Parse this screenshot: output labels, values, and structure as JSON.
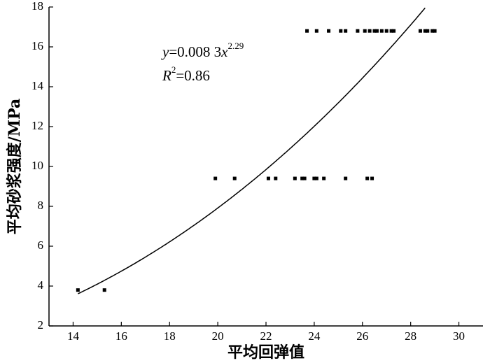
{
  "chart_data": {
    "type": "scatter",
    "xlabel": "平均回弹值",
    "ylabel": "平均砂浆强度/MPa",
    "xlim": [
      13,
      31
    ],
    "xticks": [
      14,
      16,
      18,
      20,
      22,
      24,
      26,
      28,
      30
    ],
    "ylim": [
      2,
      18
    ],
    "yticks": [
      2,
      4,
      6,
      8,
      10,
      12,
      14,
      16,
      18
    ],
    "series": [
      {
        "color": "#000000",
        "x": [
          14.2,
          15.3,
          19.9,
          20.7,
          22.1,
          22.4,
          23.2,
          23.5,
          23.6,
          24.0,
          24.1,
          24.4,
          25.3,
          26.2,
          26.4,
          23.7,
          24.1,
          24.6,
          25.1,
          25.3,
          25.8,
          26.1,
          26.3,
          26.5,
          26.6,
          26.8,
          27.0,
          27.2,
          27.3,
          28.4,
          28.6,
          28.7,
          28.9,
          29.0
        ],
        "values": [
          3.8,
          3.8,
          9.4,
          9.4,
          9.4,
          9.4,
          9.4,
          9.4,
          9.4,
          9.4,
          9.4,
          9.4,
          9.4,
          9.4,
          9.4,
          16.8,
          16.8,
          16.8,
          16.8,
          16.8,
          16.8,
          16.8,
          16.8,
          16.8,
          16.8,
          16.8,
          16.8,
          16.8,
          16.8,
          16.8,
          16.8,
          16.8,
          16.8,
          16.8
        ]
      }
    ],
    "fit": {
      "a": 0.0083,
      "b": 2.29,
      "x_start": 14.2,
      "color": "#000000"
    },
    "equation": {
      "lhs": "y",
      "rhs": "=0.008 3",
      "var": "x",
      "exp": "2.29"
    },
    "r2": {
      "symbol": "R",
      "exp": "2",
      "rhs": "=0.86"
    }
  }
}
